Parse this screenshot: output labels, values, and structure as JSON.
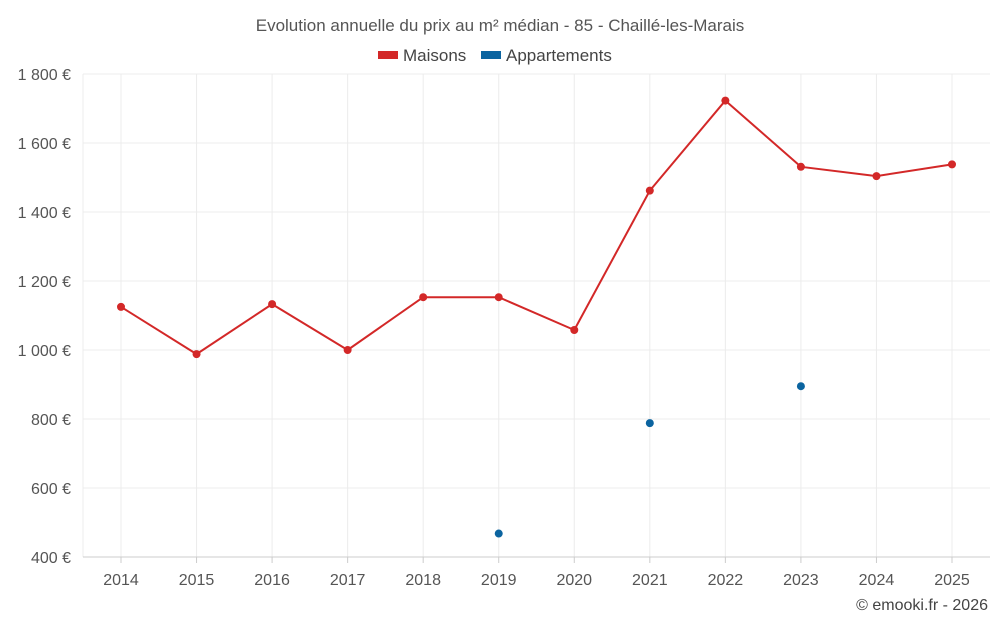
{
  "chart_data": {
    "type": "line",
    "title": "Evolution annuelle du prix au m² médian - 85 - Chaillé-les-Marais",
    "categories": [
      "2014",
      "2015",
      "2016",
      "2017",
      "2018",
      "2019",
      "2020",
      "2021",
      "2022",
      "2023",
      "2024",
      "2025"
    ],
    "series": [
      {
        "name": "Maisons",
        "color": "#d32828",
        "style": "line",
        "values": [
          1125,
          988,
          1133,
          1000,
          1153,
          1153,
          1058,
          1462,
          1723,
          1531,
          1504,
          1538
        ]
      },
      {
        "name": "Appartements",
        "color": "#0b64a0",
        "style": "points",
        "values": [
          null,
          null,
          null,
          null,
          null,
          468,
          null,
          788,
          null,
          895,
          null,
          null
        ]
      }
    ],
    "ylim": [
      400,
      1800
    ],
    "yticks": [
      400,
      600,
      800,
      1000,
      1200,
      1400,
      1600,
      1800
    ],
    "ytick_labels": [
      "400 €",
      "600 €",
      "800 €",
      "1 000 €",
      "1 200 €",
      "1 400 €",
      "1 600 €",
      "1 800 €"
    ],
    "xlabel": "",
    "ylabel": "",
    "grid": true,
    "legend_position": "top-center"
  },
  "credit": "© emooki.fr - 2026"
}
